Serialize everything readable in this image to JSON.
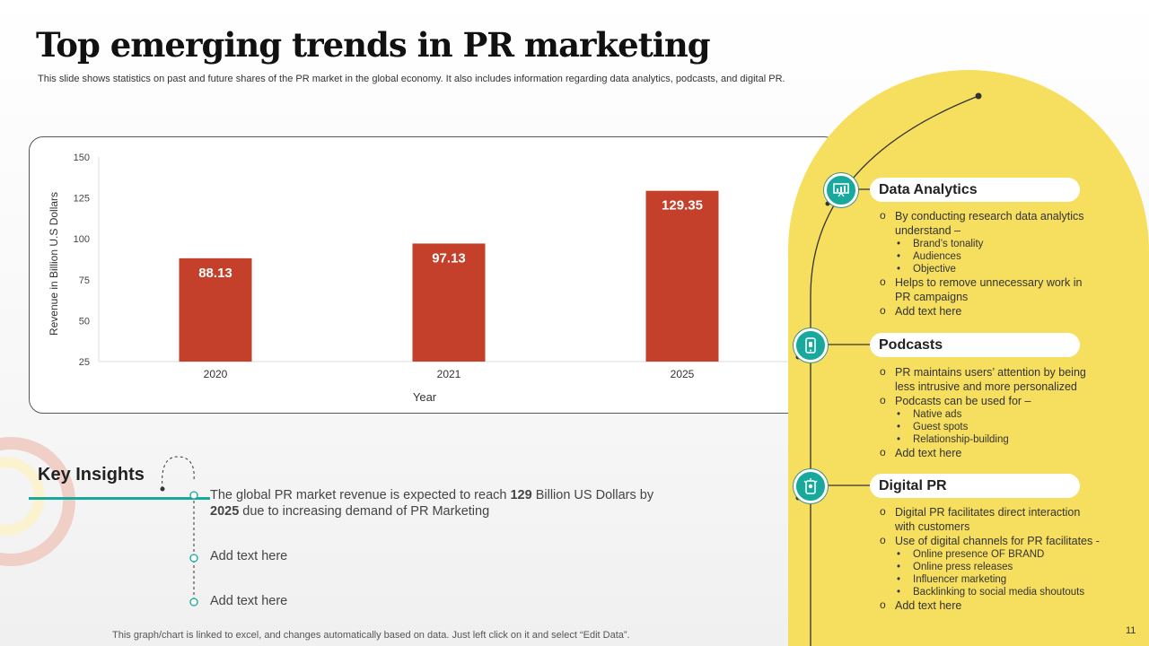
{
  "slide": {
    "title": "Top emerging trends in PR marketing",
    "subtitle": "This slide shows statistics on past and future shares of the PR market in the global economy. It also includes information regarding data analytics, podcasts, and digital PR.",
    "footer": "This graph/chart is linked to excel, and changes automatically based on data. Just left click on it and select “Edit Data”.",
    "page_number": "11"
  },
  "chart_data": {
    "type": "bar",
    "categories": [
      "2020",
      "2021",
      "2025"
    ],
    "values": [
      88.13,
      97.13,
      129.35
    ],
    "data_labels": [
      "88.13",
      "97.13",
      "129.35"
    ],
    "xlabel": "Year",
    "ylabel": "Revenue  in Billion U.S Dollars",
    "ylim": [
      25,
      150
    ],
    "yticks": [
      "25",
      "50",
      "75",
      "100",
      "125",
      "150"
    ],
    "grid": false,
    "bar_color": "#c4402b"
  },
  "key_insights": {
    "title": "Key Insights",
    "items": [
      {
        "pre": "The global  PR market revenue is expected to reach ",
        "bold1": "129",
        "mid": " Billion  US Dollars by ",
        "bold2": "2025",
        "post": " due to increasing demand of PR Marketing"
      },
      {
        "text": "Add text here"
      },
      {
        "text": "Add text here"
      }
    ]
  },
  "sections": [
    {
      "title": "Data Analytics",
      "icon": "presentation-chart-icon",
      "items": [
        {
          "text": "By conducting research data analytics understand –",
          "sub": [
            "Brand’s tonality",
            "Audiences",
            "Objective"
          ]
        },
        {
          "text": "Helps to remove  unnecessary work in PR campaigns"
        },
        {
          "text": "Add text here"
        }
      ]
    },
    {
      "title": "Podcasts",
      "icon": "smartphone-icon",
      "items": [
        {
          "text": "PR maintains users’ attention by being less intrusive  and more personalized"
        },
        {
          "text": "Podcasts can be used for –",
          "sub": [
            "Native ads",
            "Guest spots",
            "Relationship-building"
          ]
        },
        {
          "text": "Add text here"
        }
      ]
    },
    {
      "title": "Digital PR",
      "icon": "mobile-idea-icon",
      "items": [
        {
          "text": "Digital PR facilitates direct interaction with customers"
        },
        {
          "text": "Use of digital channels for PR facilitates -",
          "sub": [
            "Online presence OF BRAND",
            "Online press releases",
            "Influencer marketing",
            "Backlinking to social media shoutouts"
          ]
        },
        {
          "text": "Add text here"
        }
      ]
    }
  ],
  "colors": {
    "accent": "#18a99c",
    "yellow": "#f6de5e",
    "bar": "#c4402b"
  }
}
